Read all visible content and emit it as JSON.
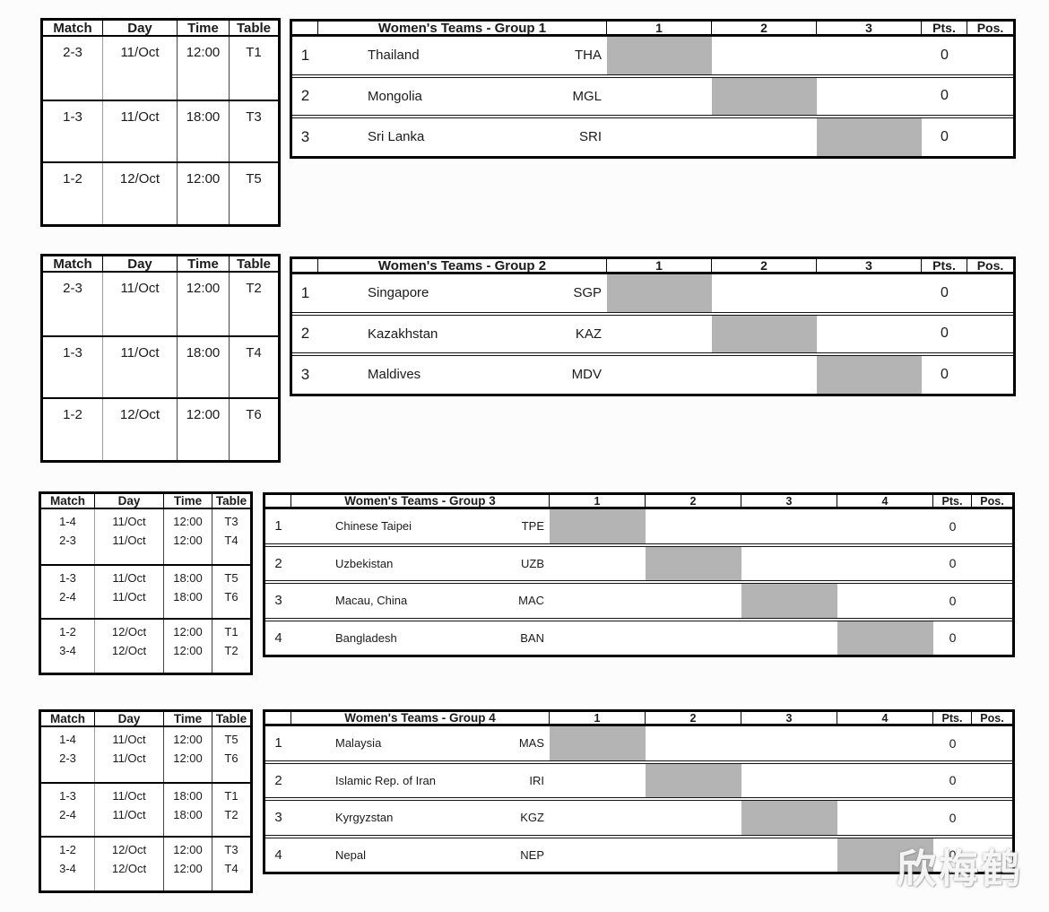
{
  "watermark": "欣梅鹤",
  "colors": {
    "diagonal_cell": "#b4b4b4",
    "border": "#000000",
    "text": "#1b1b1b"
  },
  "schedule_headers": [
    "Match",
    "Day",
    "Time",
    "Table"
  ],
  "standings": {
    "pts_label": "Pts.",
    "pos_label": "Pos."
  },
  "groups": [
    {
      "title": "Women's Teams - Group 1",
      "opponent_columns": [
        "1",
        "2",
        "3"
      ],
      "schedule_blocks": [
        [
          {
            "match": "2-3",
            "day": "11/Oct",
            "time": "12:00",
            "table": "T1"
          }
        ],
        [
          {
            "match": "1-3",
            "day": "11/Oct",
            "time": "18:00",
            "table": "T3"
          }
        ],
        [
          {
            "match": "1-2",
            "day": "12/Oct",
            "time": "12:00",
            "table": "T5"
          }
        ]
      ],
      "teams": [
        {
          "rank": "1",
          "name": "Thailand",
          "code": "THA",
          "pts": "0",
          "pos": ""
        },
        {
          "rank": "2",
          "name": "Mongolia",
          "code": "MGL",
          "pts": "0",
          "pos": ""
        },
        {
          "rank": "3",
          "name": "Sri Lanka",
          "code": "SRI",
          "pts": "0",
          "pos": ""
        }
      ]
    },
    {
      "title": "Women's Teams - Group 2",
      "opponent_columns": [
        "1",
        "2",
        "3"
      ],
      "schedule_blocks": [
        [
          {
            "match": "2-3",
            "day": "11/Oct",
            "time": "12:00",
            "table": "T2"
          }
        ],
        [
          {
            "match": "1-3",
            "day": "11/Oct",
            "time": "18:00",
            "table": "T4"
          }
        ],
        [
          {
            "match": "1-2",
            "day": "12/Oct",
            "time": "12:00",
            "table": "T6"
          }
        ]
      ],
      "teams": [
        {
          "rank": "1",
          "name": "Singapore",
          "code": "SGP",
          "pts": "0",
          "pos": ""
        },
        {
          "rank": "2",
          "name": "Kazakhstan",
          "code": "KAZ",
          "pts": "0",
          "pos": ""
        },
        {
          "rank": "3",
          "name": "Maldives",
          "code": "MDV",
          "pts": "0",
          "pos": ""
        }
      ]
    },
    {
      "title": "Women's Teams - Group 3",
      "opponent_columns": [
        "1",
        "2",
        "3",
        "4"
      ],
      "schedule_blocks": [
        [
          {
            "match": "1-4",
            "day": "11/Oct",
            "time": "12:00",
            "table": "T3"
          },
          {
            "match": "2-3",
            "day": "11/Oct",
            "time": "12:00",
            "table": "T4"
          }
        ],
        [
          {
            "match": "1-3",
            "day": "11/Oct",
            "time": "18:00",
            "table": "T5"
          },
          {
            "match": "2-4",
            "day": "11/Oct",
            "time": "18:00",
            "table": "T6"
          }
        ],
        [
          {
            "match": "1-2",
            "day": "12/Oct",
            "time": "12:00",
            "table": "T1"
          },
          {
            "match": "3-4",
            "day": "12/Oct",
            "time": "12:00",
            "table": "T2"
          }
        ]
      ],
      "teams": [
        {
          "rank": "1",
          "name": "Chinese Taipei",
          "code": "TPE",
          "pts": "0",
          "pos": ""
        },
        {
          "rank": "2",
          "name": "Uzbekistan",
          "code": "UZB",
          "pts": "0",
          "pos": ""
        },
        {
          "rank": "3",
          "name": "Macau, China",
          "code": "MAC",
          "pts": "0",
          "pos": ""
        },
        {
          "rank": "4",
          "name": "Bangladesh",
          "code": "BAN",
          "pts": "0",
          "pos": ""
        }
      ]
    },
    {
      "title": "Women's Teams - Group 4",
      "opponent_columns": [
        "1",
        "2",
        "3",
        "4"
      ],
      "schedule_blocks": [
        [
          {
            "match": "1-4",
            "day": "11/Oct",
            "time": "12:00",
            "table": "T5"
          },
          {
            "match": "2-3",
            "day": "11/Oct",
            "time": "12:00",
            "table": "T6"
          }
        ],
        [
          {
            "match": "1-3",
            "day": "11/Oct",
            "time": "18:00",
            "table": "T1"
          },
          {
            "match": "2-4",
            "day": "11/Oct",
            "time": "18:00",
            "table": "T2"
          }
        ],
        [
          {
            "match": "1-2",
            "day": "12/Oct",
            "time": "12:00",
            "table": "T3"
          },
          {
            "match": "3-4",
            "day": "12/Oct",
            "time": "12:00",
            "table": "T4"
          }
        ]
      ],
      "teams": [
        {
          "rank": "1",
          "name": "Malaysia",
          "code": "MAS",
          "pts": "0",
          "pos": ""
        },
        {
          "rank": "2",
          "name": "Islamic Rep. of Iran",
          "code": "IRI",
          "pts": "0",
          "pos": ""
        },
        {
          "rank": "3",
          "name": "Kyrgyzstan",
          "code": "KGZ",
          "pts": "0",
          "pos": ""
        },
        {
          "rank": "4",
          "name": "Nepal",
          "code": "NEP",
          "pts": "0",
          "pos": ""
        }
      ]
    }
  ]
}
